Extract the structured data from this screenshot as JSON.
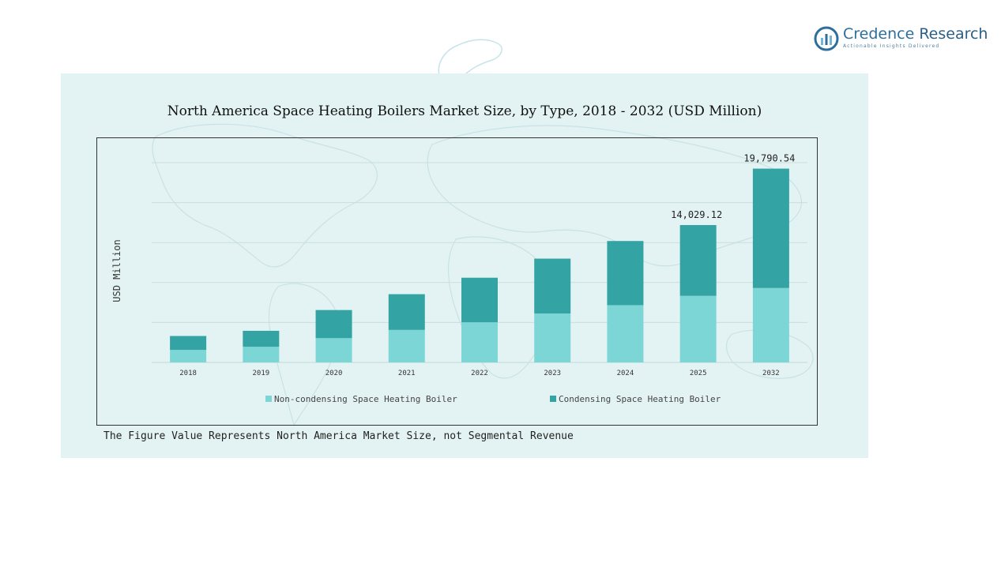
{
  "brand": {
    "name_part1": "Credence",
    "name_part2": " Research",
    "tagline": "Actionable Insights Delivered",
    "colors": {
      "logo_blue": "#2d6f9a",
      "logo_light": "#6fb6d8"
    }
  },
  "footnote": "The Figure Value Represents North America Market Size, not Segmental Revenue",
  "chart_data": {
    "type": "bar",
    "stacked": true,
    "title": "North America Space Heating Boilers Market Size, by Type, 2018 - 2032 (USD Million)",
    "xlabel": "",
    "ylabel": "USD Million",
    "categories": [
      "2018",
      "2019",
      "2020",
      "2021",
      "2022",
      "2023",
      "2024",
      "2025",
      "2032"
    ],
    "series": [
      {
        "name": "Non-condensing Space Heating Boiler",
        "color": "#7dd6d6",
        "values": [
          1280,
          1600,
          2480,
          3320,
          4100,
          5000,
          5850,
          6800,
          7600
        ]
      },
      {
        "name": "Condensing Space Heating Boiler",
        "color": "#33a3a4",
        "values": [
          1420,
          1630,
          2870,
          3650,
          4550,
          5600,
          6550,
          7229.12,
          12190.54
        ]
      }
    ],
    "data_labels": [
      {
        "category": "2025",
        "text": "14,029.12"
      },
      {
        "category": "2032",
        "text": "19,790.54"
      }
    ],
    "ylim": [
      0,
      20400
    ],
    "grid": true,
    "legend_position": "bottom",
    "colors": {
      "gridline": "#c9dede",
      "axis_label": "#333333"
    }
  }
}
